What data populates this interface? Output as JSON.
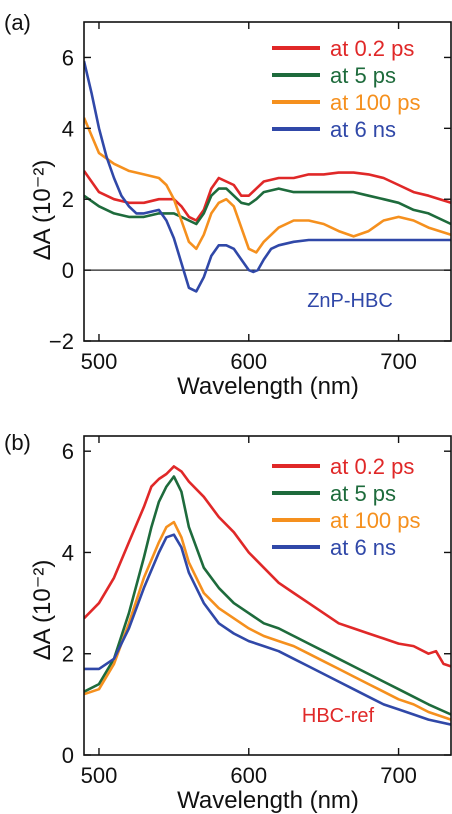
{
  "chart_data": [
    {
      "panel": "(a)",
      "type": "line",
      "xlabel": "Wavelength (nm)",
      "ylabel": "ΔA (10⁻²)",
      "xlim": [
        490,
        735
      ],
      "ylim": [
        -2,
        7
      ],
      "xticks": [
        500,
        600,
        700
      ],
      "yticks": [
        -2,
        0,
        2,
        4,
        6
      ],
      "zero_line": true,
      "legend_position": "top-right",
      "annotation": {
        "text": "ZnP-HBC",
        "color": "#3048a8"
      },
      "series": [
        {
          "name": "at 0.2 ps",
          "color": "#e02828",
          "x": [
            490,
            500,
            510,
            520,
            530,
            540,
            550,
            555,
            560,
            565,
            570,
            575,
            580,
            585,
            590,
            595,
            600,
            605,
            610,
            620,
            630,
            640,
            650,
            660,
            670,
            680,
            690,
            700,
            710,
            720,
            735
          ],
          "y": [
            2.8,
            2.2,
            2.0,
            1.9,
            1.9,
            2.0,
            2.0,
            1.8,
            1.5,
            1.4,
            1.7,
            2.3,
            2.6,
            2.5,
            2.4,
            2.1,
            2.1,
            2.3,
            2.5,
            2.6,
            2.6,
            2.7,
            2.7,
            2.75,
            2.75,
            2.7,
            2.6,
            2.4,
            2.2,
            2.1,
            1.9
          ]
        },
        {
          "name": "at 5 ps",
          "color": "#1e6b3c",
          "x": [
            490,
            500,
            510,
            520,
            530,
            540,
            550,
            555,
            560,
            565,
            570,
            575,
            580,
            585,
            590,
            595,
            600,
            605,
            610,
            620,
            630,
            640,
            650,
            660,
            670,
            680,
            690,
            700,
            710,
            720,
            735
          ],
          "y": [
            2.1,
            1.8,
            1.6,
            1.5,
            1.5,
            1.6,
            1.6,
            1.5,
            1.4,
            1.3,
            1.6,
            2.1,
            2.3,
            2.3,
            2.1,
            1.9,
            1.85,
            2.0,
            2.2,
            2.3,
            2.2,
            2.2,
            2.2,
            2.2,
            2.2,
            2.1,
            2.0,
            1.9,
            1.7,
            1.6,
            1.3
          ]
        },
        {
          "name": "at 100 ps",
          "color": "#f5901e",
          "x": [
            490,
            495,
            500,
            510,
            520,
            530,
            540,
            545,
            550,
            555,
            560,
            565,
            570,
            575,
            580,
            585,
            590,
            595,
            600,
            605,
            610,
            620,
            630,
            640,
            650,
            660,
            670,
            680,
            690,
            700,
            710,
            720,
            735
          ],
          "y": [
            4.3,
            3.8,
            3.3,
            3.0,
            2.8,
            2.7,
            2.6,
            2.4,
            2.0,
            1.4,
            0.8,
            0.6,
            1.0,
            1.6,
            1.9,
            2.0,
            1.8,
            1.2,
            0.6,
            0.5,
            0.8,
            1.2,
            1.4,
            1.4,
            1.3,
            1.1,
            0.95,
            1.1,
            1.4,
            1.5,
            1.4,
            1.2,
            1.0
          ]
        },
        {
          "name": "at 6 ns",
          "color": "#3048a8",
          "x": [
            490,
            495,
            500,
            505,
            510,
            515,
            520,
            525,
            530,
            540,
            545,
            550,
            555,
            560,
            565,
            570,
            575,
            580,
            585,
            590,
            595,
            600,
            603,
            606,
            610,
            615,
            620,
            630,
            640,
            650,
            660,
            670,
            680,
            690,
            700,
            710,
            720,
            735
          ],
          "y": [
            5.9,
            5.0,
            4.0,
            3.2,
            2.6,
            2.1,
            1.8,
            1.6,
            1.6,
            1.7,
            1.4,
            0.9,
            0.2,
            -0.5,
            -0.6,
            -0.2,
            0.4,
            0.7,
            0.7,
            0.6,
            0.3,
            0.0,
            -0.05,
            0.0,
            0.3,
            0.6,
            0.7,
            0.8,
            0.85,
            0.85,
            0.85,
            0.85,
            0.85,
            0.85,
            0.85,
            0.85,
            0.85,
            0.85
          ]
        }
      ]
    },
    {
      "panel": "(b)",
      "type": "line",
      "xlabel": "Wavelength (nm)",
      "ylabel": "ΔA (10⁻²)",
      "xlim": [
        490,
        735
      ],
      "ylim": [
        0,
        6.3
      ],
      "xticks": [
        500,
        600,
        700
      ],
      "yticks": [
        0,
        2,
        4,
        6
      ],
      "zero_line": false,
      "legend_position": "top-right",
      "annotation": {
        "text": "HBC-ref",
        "color": "#e02828"
      },
      "series": [
        {
          "name": "at 0.2 ps",
          "color": "#e02828",
          "x": [
            490,
            500,
            510,
            520,
            530,
            535,
            540,
            545,
            550,
            555,
            560,
            570,
            580,
            590,
            600,
            610,
            620,
            630,
            640,
            650,
            660,
            670,
            680,
            690,
            700,
            710,
            720,
            725,
            730,
            735
          ],
          "y": [
            2.7,
            3.0,
            3.5,
            4.2,
            4.9,
            5.3,
            5.45,
            5.55,
            5.7,
            5.6,
            5.4,
            5.1,
            4.7,
            4.4,
            4.0,
            3.7,
            3.4,
            3.2,
            3.0,
            2.8,
            2.6,
            2.5,
            2.4,
            2.3,
            2.2,
            2.15,
            2.0,
            2.05,
            1.8,
            1.75
          ]
        },
        {
          "name": "at 5 ps",
          "color": "#1e6b3c",
          "x": [
            490,
            500,
            510,
            520,
            530,
            535,
            540,
            545,
            550,
            555,
            560,
            570,
            580,
            590,
            600,
            610,
            620,
            630,
            640,
            650,
            660,
            670,
            680,
            690,
            700,
            710,
            720,
            735
          ],
          "y": [
            1.25,
            1.4,
            1.9,
            2.8,
            3.9,
            4.5,
            5.0,
            5.3,
            5.5,
            5.2,
            4.5,
            3.7,
            3.3,
            3.0,
            2.8,
            2.6,
            2.5,
            2.35,
            2.2,
            2.05,
            1.9,
            1.75,
            1.6,
            1.45,
            1.3,
            1.15,
            1.0,
            0.8
          ]
        },
        {
          "name": "at 100 ps",
          "color": "#f5901e",
          "x": [
            490,
            500,
            510,
            520,
            530,
            540,
            545,
            550,
            555,
            560,
            570,
            580,
            590,
            600,
            610,
            620,
            630,
            640,
            650,
            660,
            670,
            680,
            690,
            700,
            710,
            720,
            735
          ],
          "y": [
            1.2,
            1.3,
            1.8,
            2.6,
            3.5,
            4.2,
            4.5,
            4.6,
            4.3,
            3.8,
            3.2,
            2.9,
            2.7,
            2.5,
            2.35,
            2.25,
            2.15,
            2.0,
            1.85,
            1.7,
            1.55,
            1.4,
            1.25,
            1.1,
            1.0,
            0.85,
            0.7
          ]
        },
        {
          "name": "at 6 ns",
          "color": "#3048a8",
          "x": [
            490,
            500,
            510,
            520,
            530,
            540,
            545,
            550,
            555,
            560,
            570,
            580,
            590,
            600,
            610,
            620,
            630,
            640,
            650,
            660,
            670,
            680,
            690,
            700,
            710,
            720,
            735
          ],
          "y": [
            1.7,
            1.7,
            1.9,
            2.5,
            3.3,
            4.0,
            4.3,
            4.35,
            4.1,
            3.6,
            3.0,
            2.6,
            2.4,
            2.25,
            2.15,
            2.05,
            1.9,
            1.75,
            1.6,
            1.45,
            1.3,
            1.15,
            1.0,
            0.9,
            0.8,
            0.7,
            0.6
          ]
        }
      ]
    }
  ]
}
